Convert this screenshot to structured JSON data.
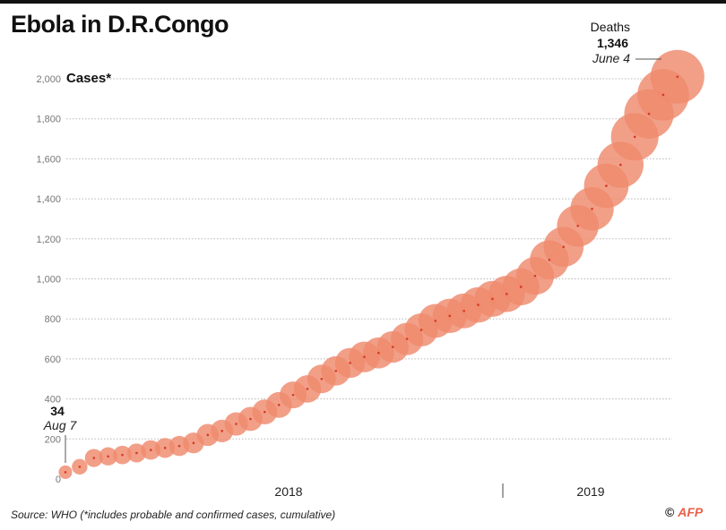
{
  "title": "Ebola in D.R.Congo",
  "source": "Source: WHO (*includes probable and confirmed cases, cumulative)",
  "credit": {
    "copyright": "©",
    "agency": "AFP"
  },
  "colors": {
    "bubble": "#ef8a6e",
    "dot": "#d63a22",
    "grid": "#b8b8b8",
    "accent": "#e8604a"
  },
  "annotations": {
    "start_value": "34",
    "start_date": "Aug 7",
    "end_label": "Deaths",
    "end_value": "1,346",
    "end_date": "June 4"
  },
  "chart_data": {
    "type": "scatter",
    "title": "Ebola in D.R.Congo",
    "ylabel": "Cases*",
    "ylim": [
      0,
      2000
    ],
    "yticks": [
      "0",
      "200",
      "400",
      "600",
      "800",
      "1,000",
      "1,200",
      "1,400",
      "1,600",
      "1,800",
      "2,000"
    ],
    "year_labels": [
      "2018",
      "2019"
    ],
    "bubble_size_meaning": "Deaths (cumulative)",
    "series": [
      {
        "name": "Cases (cumulative)",
        "week": [
          0,
          1,
          2,
          3,
          4,
          5,
          6,
          7,
          8,
          9,
          10,
          11,
          12,
          13,
          14,
          15,
          16,
          17,
          18,
          19,
          20,
          21,
          22,
          23,
          24,
          25,
          26,
          27,
          28,
          29,
          30,
          31,
          32,
          33,
          34,
          35,
          36,
          37,
          38,
          39,
          40,
          41,
          42,
          43
        ],
        "values": [
          34,
          61,
          105,
          113,
          120,
          130,
          145,
          155,
          165,
          180,
          220,
          240,
          275,
          300,
          335,
          370,
          420,
          450,
          500,
          540,
          580,
          610,
          630,
          660,
          700,
          745,
          790,
          815,
          840,
          870,
          900,
          925,
          960,
          1015,
          1095,
          1160,
          1265,
          1350,
          1465,
          1570,
          1710,
          1825,
          1920,
          2010
        ],
        "deaths": [
          14,
          30,
          55,
          58,
          62,
          67,
          75,
          80,
          85,
          95,
          115,
          125,
          140,
          155,
          170,
          190,
          215,
          230,
          260,
          280,
          300,
          320,
          330,
          345,
          370,
          395,
          420,
          435,
          450,
          470,
          490,
          505,
          530,
          560,
          610,
          650,
          720,
          790,
          850,
          920,
          1000,
          1100,
          1220,
          1346
        ]
      }
    ]
  }
}
